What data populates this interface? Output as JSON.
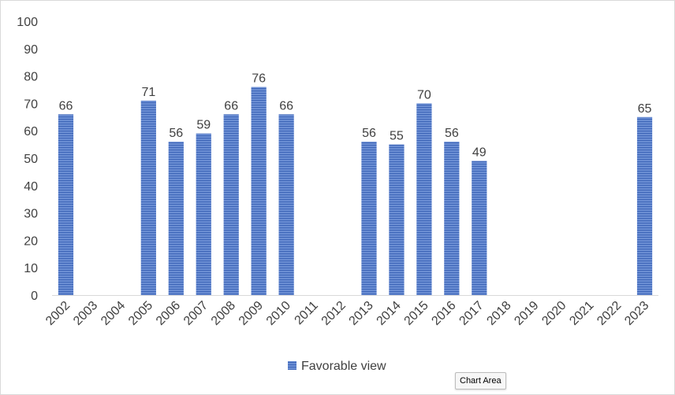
{
  "chart_data": {
    "type": "bar",
    "categories": [
      "2002",
      "2003",
      "2004",
      "2005",
      "2006",
      "2007",
      "2008",
      "2009",
      "2010",
      "2011",
      "2012",
      "2013",
      "2014",
      "2015",
      "2016",
      "2017",
      "2018",
      "2019",
      "2020",
      "2021",
      "2022",
      "2023"
    ],
    "series": [
      {
        "name": "Favorable view",
        "values": [
          66,
          null,
          null,
          71,
          56,
          59,
          66,
          76,
          66,
          null,
          null,
          56,
          55,
          70,
          56,
          49,
          null,
          null,
          null,
          null,
          null,
          65
        ],
        "color": "#4472c4"
      }
    ],
    "yticks": [
      "0",
      "10",
      "20",
      "30",
      "40",
      "50",
      "60",
      "70",
      "80",
      "90",
      "100"
    ],
    "ylim": [
      0,
      100
    ],
    "title": "",
    "xlabel": "",
    "ylabel": "",
    "grid": false,
    "legend_position": "bottom",
    "data_labels": true
  },
  "tooltip": {
    "text": "Chart Area"
  }
}
